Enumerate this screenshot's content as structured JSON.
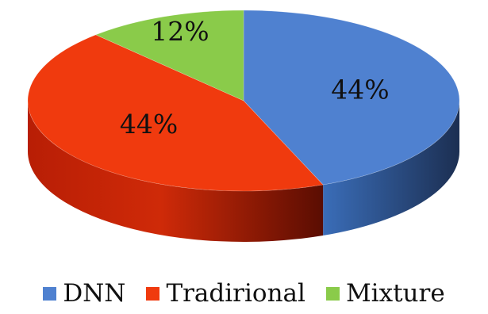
{
  "chart_data": {
    "type": "pie",
    "title": "",
    "slices": [
      {
        "name": "DNN",
        "value": 44,
        "label": "44%",
        "color": "#4F81D0"
      },
      {
        "name": "Tradirional",
        "value": 44,
        "label": "44%",
        "color": "#F03A0E"
      },
      {
        "name": "Mixture",
        "value": 12,
        "label": "12%",
        "color": "#8ACB4A"
      }
    ],
    "legend_position": "bottom",
    "style": "3d"
  }
}
